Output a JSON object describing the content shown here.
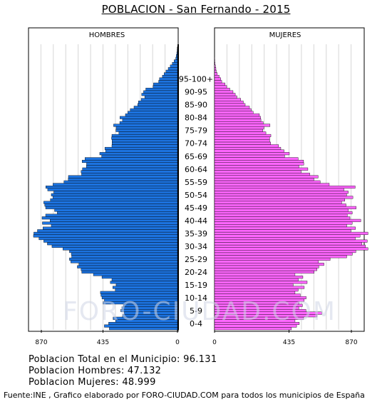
{
  "title": "POBLACION - San Fernando - 2015",
  "watermark": "FORO-CIUDAD.COM",
  "stats": {
    "total": "Poblacion Total en el Municipio: 96.131",
    "hombres": "Poblacion Hombres: 47.132",
    "mujeres": "Poblacion Mujeres: 48.999"
  },
  "footer": "Fuente:INE , Grafico elaborado por FORO-CIUDAD.COM para todos los municipios de España",
  "colors": {
    "male": "#1c73e0",
    "female": "#ff66ff",
    "grid": "#d6d6d6",
    "border": "#000000"
  },
  "chart_data": {
    "type": "bar",
    "orientation": "horizontal-pyramid",
    "left_label": "HOMBRES",
    "right_label": "MUJERES",
    "age_labels": [
      "0-4",
      "5-9",
      "10-14",
      "15-19",
      "20-24",
      "25-29",
      "30-34",
      "35-39",
      "40-44",
      "45-49",
      "50-54",
      "55-59",
      "60-64",
      "65-69",
      "70-74",
      "75-79",
      "80-84",
      "85-90",
      "90-95",
      "95-100+"
    ],
    "x_ticks_left": [
      "870",
      "435",
      "0"
    ],
    "x_ticks_right": [
      "0",
      "435",
      "870"
    ],
    "xlim": [
      0,
      870
    ],
    "grid": true,
    "ages_from_0": true,
    "male": [
      398,
      427,
      402,
      361,
      376,
      321,
      312,
      331,
      325,
      316,
      435,
      427,
      441,
      447,
      450,
      363,
      378,
      358,
      392,
      383,
      441,
      491,
      559,
      563,
      585,
      575,
      623,
      631,
      618,
      620,
      631,
      669,
      733,
      760,
      781,
      809,
      841,
      839,
      818,
      786,
      737,
      789,
      744,
      791,
      770,
      702,
      718,
      770,
      775,
      781,
      742,
      728,
      737,
      722,
      758,
      769,
      727,
      663,
      638,
      637,
      560,
      563,
      555,
      532,
      531,
      557,
      540,
      443,
      454,
      420,
      424,
      383,
      382,
      382,
      385,
      383,
      342,
      359,
      358,
      373,
      337,
      321,
      336,
      304,
      290,
      276,
      254,
      232,
      228,
      212,
      191,
      209,
      198,
      185,
      142,
      140,
      110,
      105,
      88,
      78,
      67,
      54,
      42,
      30,
      20,
      10,
      7,
      4,
      2,
      1,
      0
    ],
    "female": [
      449,
      479,
      495,
      470,
      520,
      599,
      627,
      534,
      492,
      513,
      493,
      523,
      535,
      501,
      470,
      488,
      524,
      459,
      541,
      489,
      516,
      470,
      582,
      598,
      609,
      639,
      607,
      675,
      772,
      805,
      825,
      896,
      881,
      861,
      892,
      822,
      850,
      896,
      796,
      823,
      772,
      804,
      854,
      791,
      775,
      804,
      781,
      827,
      768,
      742,
      761,
      808,
      771,
      781,
      756,
      821,
      670,
      617,
      580,
      605,
      556,
      505,
      545,
      493,
      521,
      520,
      488,
      409,
      437,
      406,
      387,
      374,
      328,
      322,
      322,
      329,
      300,
      282,
      288,
      324,
      284,
      271,
      269,
      262,
      226,
      214,
      204,
      179,
      168,
      153,
      131,
      121,
      108,
      89,
      71,
      61,
      42,
      36,
      27,
      16,
      10,
      8,
      5,
      3,
      2,
      1,
      0
    ]
  }
}
